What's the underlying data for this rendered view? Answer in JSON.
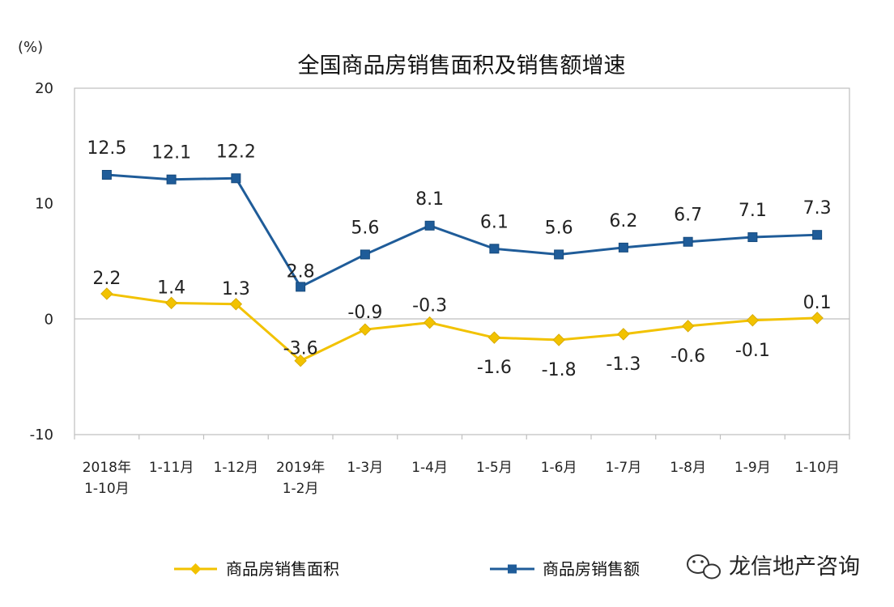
{
  "chart_data": {
    "type": "line",
    "title": "全国商品房销售面积及销售额增速",
    "unit": "(%)",
    "categories": [
      [
        "2018年",
        "1-10月"
      ],
      [
        "1-11月"
      ],
      [
        "1-12月"
      ],
      [
        "2019年",
        "1-2月"
      ],
      [
        "1-3月"
      ],
      [
        "1-4月"
      ],
      [
        "1-5月"
      ],
      [
        "1-6月"
      ],
      [
        "1-7月"
      ],
      [
        "1-8月"
      ],
      [
        "1-9月"
      ],
      [
        "1-10月"
      ]
    ],
    "ylim": [
      -10,
      20
    ],
    "yticks": [
      20,
      10,
      0,
      -10
    ],
    "grid": false,
    "legend_position": "bottom",
    "series": [
      {
        "name": "商品房销售面积",
        "color": "#F2C200",
        "marker": "diamond",
        "values": [
          2.2,
          1.4,
          1.3,
          -3.6,
          -0.9,
          -0.3,
          -1.6,
          -1.8,
          -1.3,
          -0.6,
          -0.1,
          0.1
        ],
        "labels": [
          "2.2",
          "1.4",
          "1.3",
          "-3.6",
          "-0.9",
          "-0.3",
          "-1.6",
          "-1.8",
          "-1.3",
          "-0.6",
          "-0.1",
          "0.1"
        ]
      },
      {
        "name": "商品房销售额",
        "color": "#1F5C99",
        "marker": "square",
        "values": [
          12.5,
          12.1,
          12.2,
          2.8,
          5.6,
          8.1,
          6.1,
          5.6,
          6.2,
          6.7,
          7.1,
          7.3
        ],
        "labels": [
          "12.5",
          "12.1",
          "12.2",
          "2.8",
          "5.6",
          "8.1",
          "6.1",
          "5.6",
          "6.2",
          "6.7",
          "7.1",
          "7.3"
        ]
      }
    ]
  },
  "watermark": {
    "icon": "wechat-icon",
    "text": "龙信地产咨询"
  }
}
